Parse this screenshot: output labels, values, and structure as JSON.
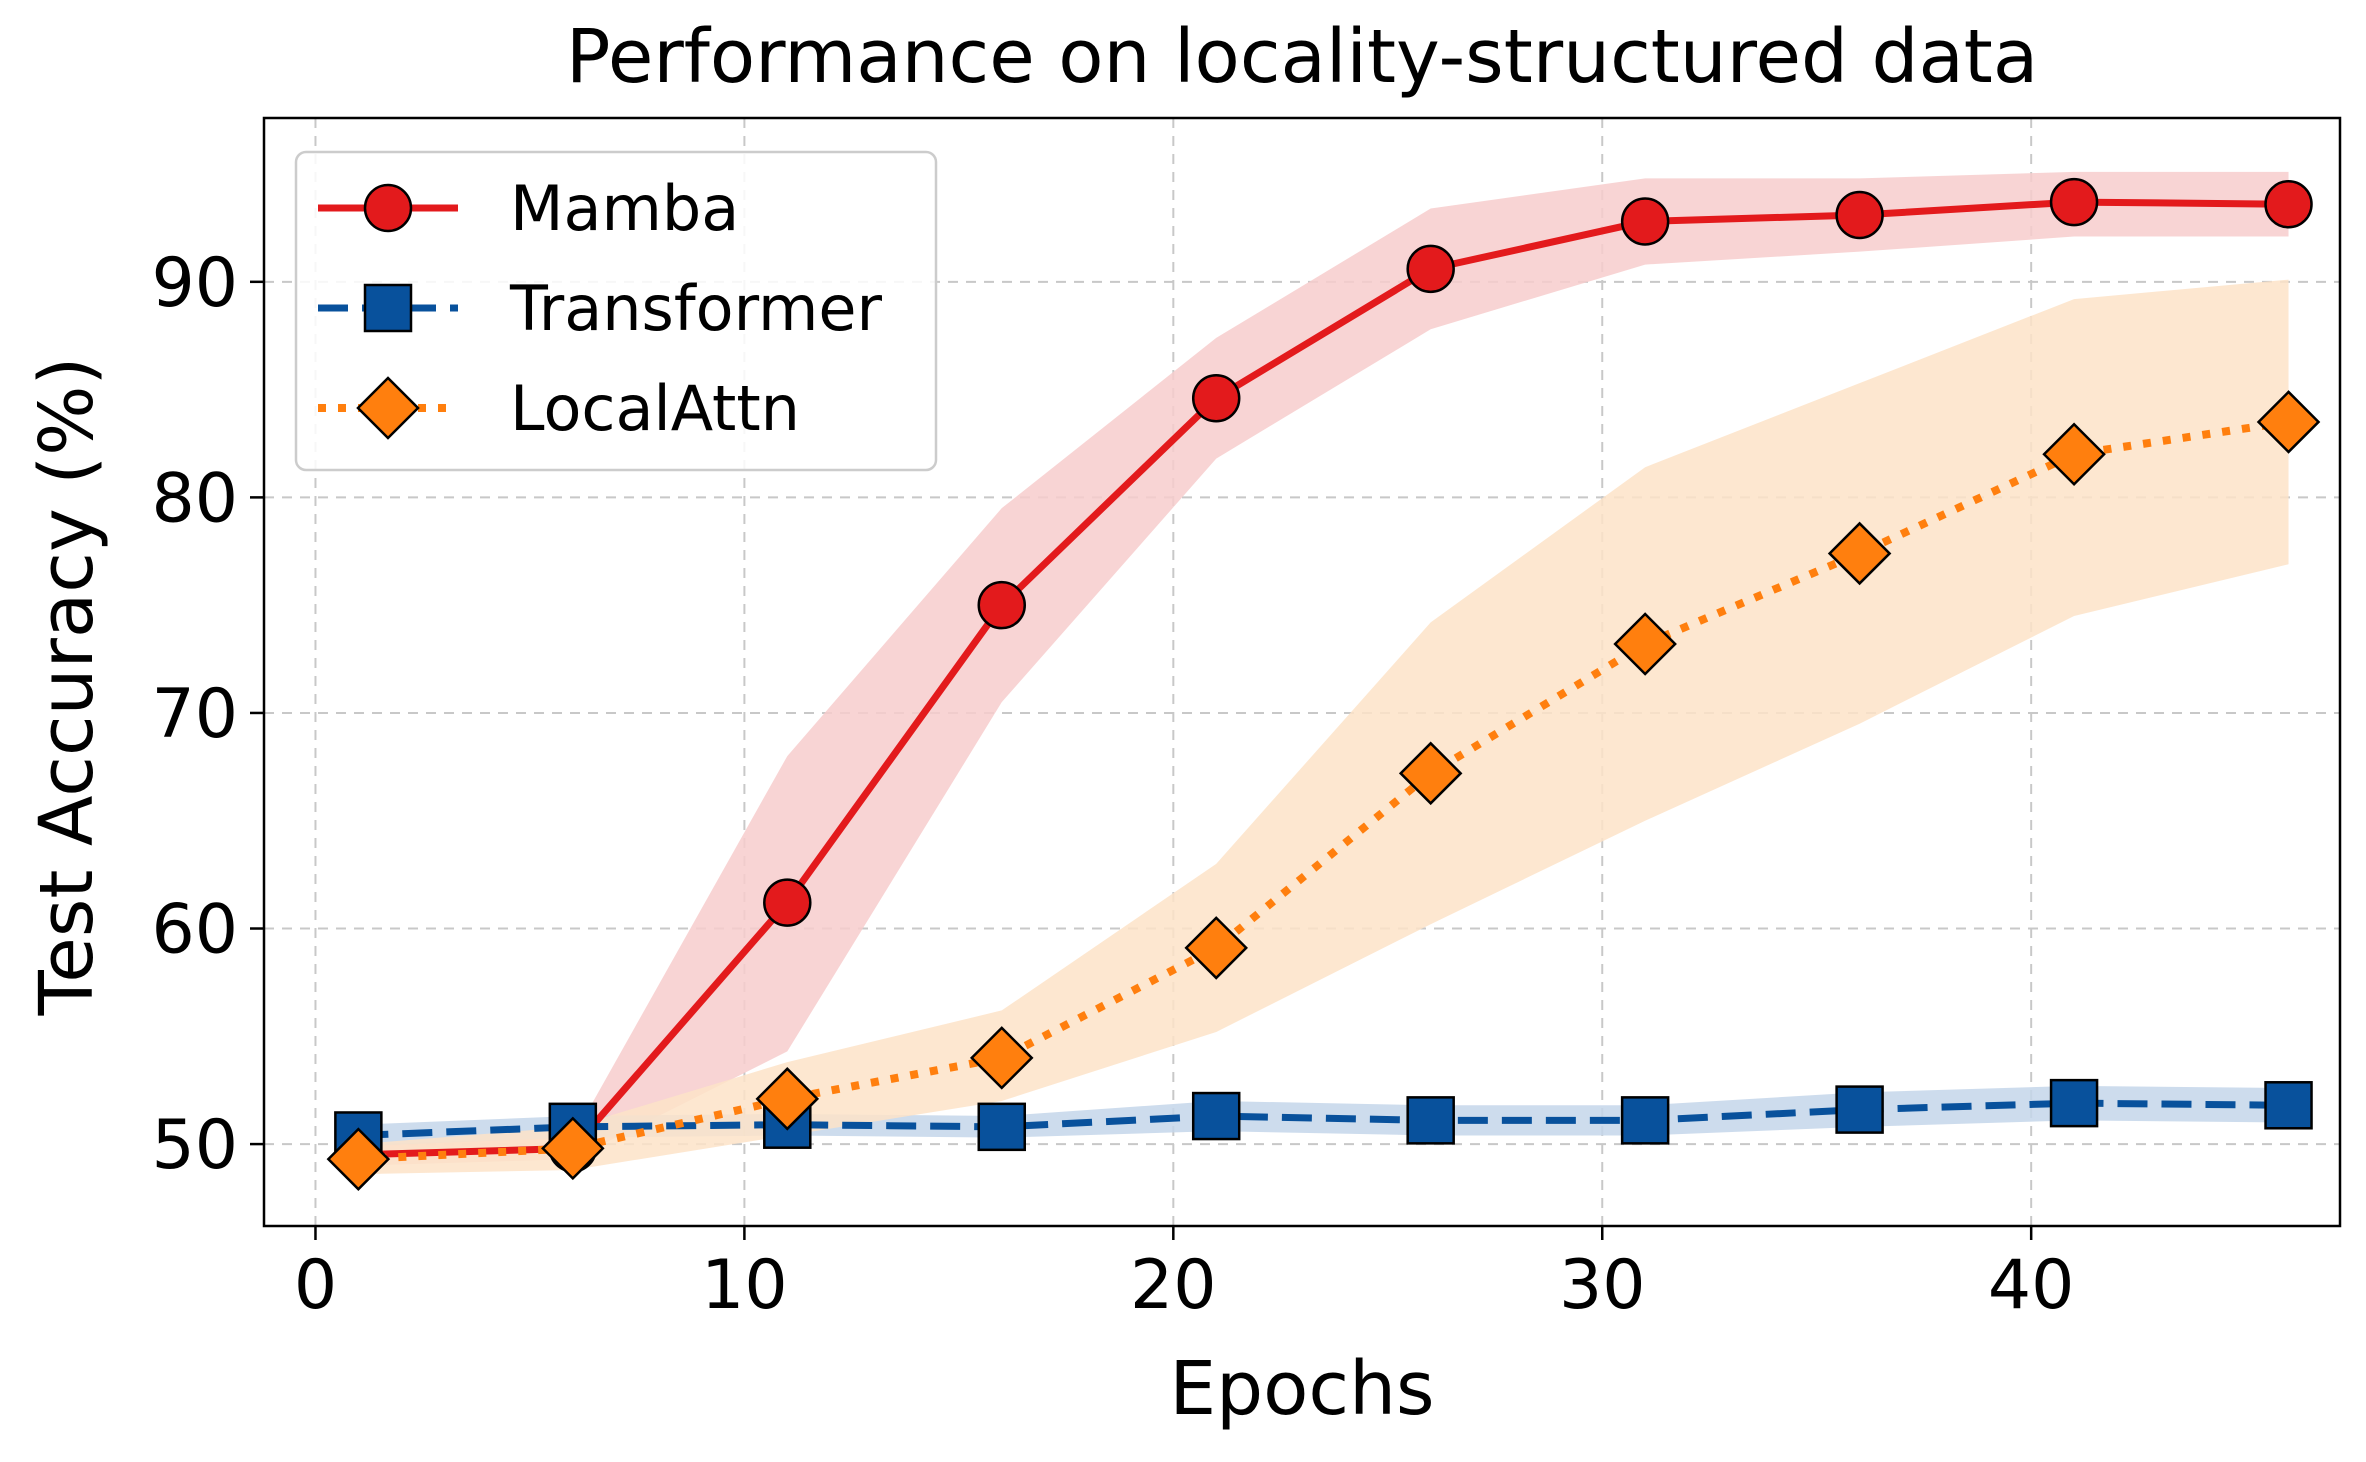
{
  "chart_data": {
    "type": "line",
    "title": "Performance on locality-structured data",
    "xlabel": "Epochs",
    "ylabel": "Test Accuracy (%)",
    "xlim": [
      -1.2,
      47.2
    ],
    "ylim": [
      46.2,
      97.6
    ],
    "xticks": [
      0,
      10,
      20,
      30,
      40
    ],
    "yticks": [
      50,
      60,
      70,
      80,
      90
    ],
    "grid": true,
    "legend_position": "top-left",
    "x": [
      1,
      6,
      11,
      16,
      21,
      26,
      31,
      36,
      41,
      46
    ],
    "series": [
      {
        "name": "Mamba",
        "color": "#e31a1c",
        "band_color": "#f7cccd",
        "line_style": "solid",
        "marker": "circle",
        "values": [
          49.5,
          49.8,
          61.2,
          75.0,
          84.6,
          90.6,
          92.8,
          93.1,
          93.7,
          93.6
        ],
        "lower": [
          49.0,
          49.3,
          54.3,
          70.5,
          81.8,
          87.8,
          90.8,
          91.4,
          92.1,
          92.1
        ],
        "upper": [
          50.0,
          50.3,
          68.0,
          79.5,
          87.4,
          93.4,
          94.8,
          94.8,
          95.1,
          95.1
        ]
      },
      {
        "name": "Transformer",
        "color": "#08519c",
        "band_color": "#c4d6ea",
        "line_style": "dashed",
        "marker": "square",
        "values": [
          50.4,
          50.8,
          50.9,
          50.8,
          51.3,
          51.1,
          51.1,
          51.6,
          51.9,
          51.8
        ],
        "lower": [
          49.9,
          50.3,
          50.4,
          50.3,
          50.6,
          50.4,
          50.4,
          50.8,
          51.1,
          51.0
        ],
        "upper": [
          50.9,
          51.3,
          51.4,
          51.3,
          52.0,
          51.8,
          51.8,
          52.4,
          52.7,
          52.6
        ]
      },
      {
        "name": "LocalAttn",
        "color": "#ff7f0e",
        "band_color": "#fde3c8",
        "line_style": "dotted",
        "marker": "diamond",
        "values": [
          49.3,
          49.8,
          52.1,
          54.0,
          59.1,
          67.2,
          73.2,
          77.4,
          82.0,
          83.5
        ],
        "lower": [
          48.6,
          48.8,
          50.4,
          52.0,
          55.2,
          60.2,
          65.0,
          69.5,
          74.5,
          76.9
        ],
        "upper": [
          50.0,
          50.8,
          53.8,
          56.2,
          63.0,
          74.2,
          81.4,
          85.3,
          89.2,
          90.1
        ]
      }
    ]
  }
}
